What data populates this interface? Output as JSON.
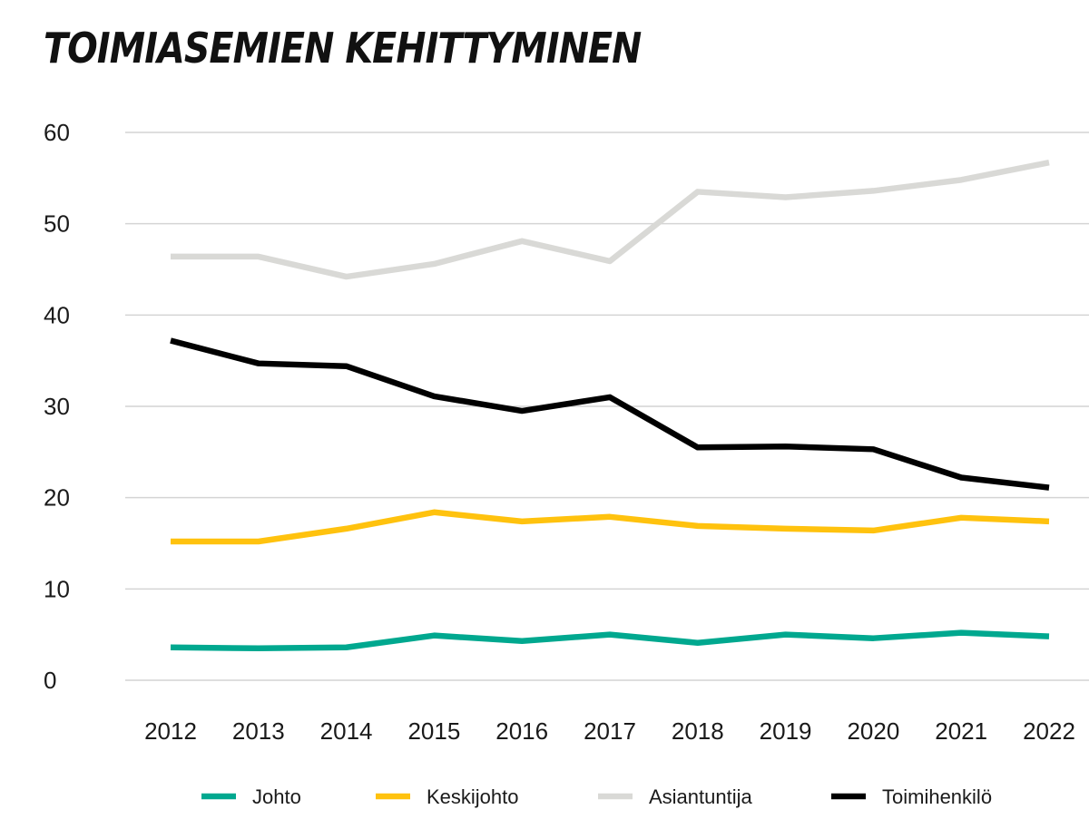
{
  "chart_data": {
    "type": "line",
    "title": "TOIMIASEMIEN KEHITTYMINEN",
    "xlabel": "",
    "ylabel": "",
    "categories": [
      "2012",
      "2013",
      "2014",
      "2015",
      "2016",
      "2017",
      "2018",
      "2019",
      "2020",
      "2021",
      "2022"
    ],
    "ylim": [
      0,
      60
    ],
    "yticks": [
      "0",
      "10",
      "20",
      "30",
      "40",
      "50",
      "60"
    ],
    "grid": "horizontal",
    "legend_position": "bottom",
    "series": [
      {
        "name": "Johto",
        "color": "#00a88f",
        "values": [
          3.6,
          3.5,
          3.6,
          4.9,
          4.3,
          5.0,
          4.1,
          5.0,
          4.6,
          5.2,
          4.8
        ]
      },
      {
        "name": "Keskijohto",
        "color": "#ffc20e",
        "values": [
          15.2,
          15.2,
          16.6,
          18.4,
          17.4,
          17.9,
          16.9,
          16.6,
          16.4,
          17.8,
          17.4
        ]
      },
      {
        "name": "Asiantuntija",
        "color": "#d9d9d6",
        "values": [
          46.4,
          46.4,
          44.2,
          45.6,
          48.1,
          45.9,
          53.5,
          52.9,
          53.6,
          54.8,
          56.7
        ]
      },
      {
        "name": "Toimihenkilö",
        "color": "#000000",
        "values": [
          37.2,
          34.7,
          34.4,
          31.1,
          29.5,
          31.0,
          25.5,
          25.6,
          25.3,
          22.2,
          21.1
        ]
      }
    ]
  }
}
